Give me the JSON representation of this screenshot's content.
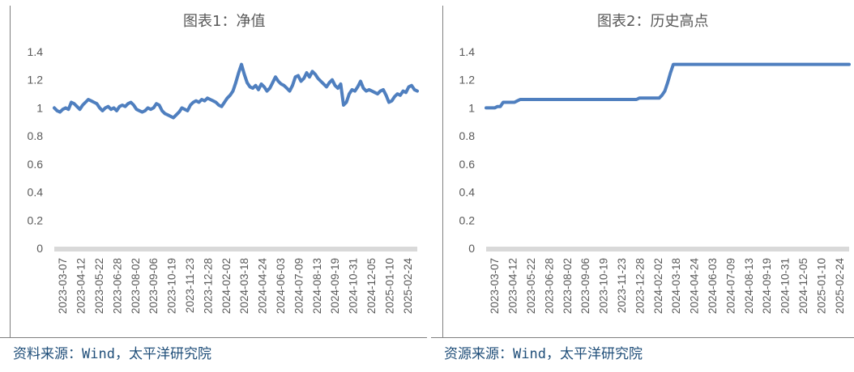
{
  "chart_data": [
    {
      "type": "line",
      "title": "图表1：净值",
      "source": "资料来源：Wind，太平洋研究院",
      "ylim": [
        0,
        1.4
      ],
      "yticks": [
        "0",
        "0.2",
        "0.4",
        "0.6",
        "0.8",
        "1",
        "1.2",
        "1.4"
      ],
      "x_tick_labels": [
        "2023-03-07",
        "2023-04-12",
        "2023-05-22",
        "2023-06-28",
        "2023-08-02",
        "2023-09-06",
        "2023-10-19",
        "2023-11-23",
        "2023-12-28",
        "2024-02-02",
        "2024-03-18",
        "2024-04-24",
        "2024-06-03",
        "2024-07-09",
        "2024-08-13",
        "2024-09-19",
        "2024-10-31",
        "2024-12-05",
        "2025-01-10",
        "2025-02-24"
      ],
      "grid": false,
      "legend": "none",
      "line_color": "#4f7fbf",
      "series": [
        {
          "values": [
            1.0,
            0.98,
            0.97,
            0.99,
            1.0,
            0.99,
            1.04,
            1.03,
            1.01,
            0.99,
            1.02,
            1.04,
            1.06,
            1.05,
            1.04,
            1.03,
            1.0,
            0.98,
            1.0,
            1.01,
            0.99,
            1.0,
            0.98,
            1.01,
            1.02,
            1.01,
            1.03,
            1.04,
            1.02,
            0.99,
            0.98,
            0.97,
            0.98,
            1.0,
            0.99,
            1.0,
            1.03,
            1.02,
            0.98,
            0.96,
            0.95,
            0.94,
            0.93,
            0.95,
            0.97,
            1.0,
            0.99,
            0.98,
            1.02,
            1.04,
            1.05,
            1.04,
            1.06,
            1.05,
            1.07,
            1.06,
            1.05,
            1.04,
            1.02,
            1.01,
            1.04,
            1.07,
            1.09,
            1.12,
            1.18,
            1.25,
            1.31,
            1.24,
            1.18,
            1.15,
            1.14,
            1.16,
            1.13,
            1.17,
            1.15,
            1.12,
            1.14,
            1.18,
            1.22,
            1.19,
            1.17,
            1.16,
            1.14,
            1.12,
            1.16,
            1.22,
            1.23,
            1.19,
            1.21,
            1.25,
            1.22,
            1.26,
            1.24,
            1.21,
            1.19,
            1.17,
            1.15,
            1.18,
            1.2,
            1.16,
            1.14,
            1.17,
            1.02,
            1.04,
            1.1,
            1.13,
            1.12,
            1.15,
            1.19,
            1.14,
            1.12,
            1.13,
            1.12,
            1.11,
            1.1,
            1.12,
            1.13,
            1.09,
            1.04,
            1.05,
            1.08,
            1.1,
            1.09,
            1.12,
            1.11,
            1.15,
            1.16,
            1.13,
            1.12
          ]
        }
      ]
    },
    {
      "type": "line",
      "title": "图表2：历史高点",
      "source": "资源来源：Wind，太平洋研究院",
      "ylim": [
        0,
        1.4
      ],
      "yticks": [
        "0",
        "0.2",
        "0.4",
        "0.6",
        "0.8",
        "1",
        "1.2",
        "1.4"
      ],
      "x_tick_labels": [
        "2023-03-07",
        "2023-04-12",
        "2023-05-22",
        "2023-06-28",
        "2023-08-02",
        "2023-09-06",
        "2023-10-19",
        "2023-11-23",
        "2023-12-28",
        "2024-02-02",
        "2024-03-18",
        "2024-04-24",
        "2024-06-03",
        "2024-07-09",
        "2024-08-13",
        "2024-09-19",
        "2024-10-31",
        "2024-12-05",
        "2025-01-10",
        "2025-02-24"
      ],
      "grid": false,
      "legend": "none",
      "line_color": "#4f7fbf",
      "series": [
        {
          "values": [
            1.0,
            1.0,
            1.0,
            1.0,
            1.01,
            1.01,
            1.04,
            1.04,
            1.04,
            1.04,
            1.04,
            1.05,
            1.06,
            1.06,
            1.06,
            1.06,
            1.06,
            1.06,
            1.06,
            1.06,
            1.06,
            1.06,
            1.06,
            1.06,
            1.06,
            1.06,
            1.06,
            1.06,
            1.06,
            1.06,
            1.06,
            1.06,
            1.06,
            1.06,
            1.06,
            1.06,
            1.06,
            1.06,
            1.06,
            1.06,
            1.06,
            1.06,
            1.06,
            1.06,
            1.06,
            1.06,
            1.06,
            1.06,
            1.06,
            1.06,
            1.06,
            1.06,
            1.06,
            1.06,
            1.07,
            1.07,
            1.07,
            1.07,
            1.07,
            1.07,
            1.07,
            1.07,
            1.09,
            1.12,
            1.18,
            1.25,
            1.31,
            1.31,
            1.31,
            1.31,
            1.31,
            1.31,
            1.31,
            1.31,
            1.31,
            1.31,
            1.31,
            1.31,
            1.31,
            1.31,
            1.31,
            1.31,
            1.31,
            1.31,
            1.31,
            1.31,
            1.31,
            1.31,
            1.31,
            1.31,
            1.31,
            1.31,
            1.31,
            1.31,
            1.31,
            1.31,
            1.31,
            1.31,
            1.31,
            1.31,
            1.31,
            1.31,
            1.31,
            1.31,
            1.31,
            1.31,
            1.31,
            1.31,
            1.31,
            1.31,
            1.31,
            1.31,
            1.31,
            1.31,
            1.31,
            1.31,
            1.31,
            1.31,
            1.31,
            1.31,
            1.31,
            1.31,
            1.31,
            1.31,
            1.31,
            1.31,
            1.31,
            1.31,
            1.31
          ]
        }
      ]
    }
  ]
}
